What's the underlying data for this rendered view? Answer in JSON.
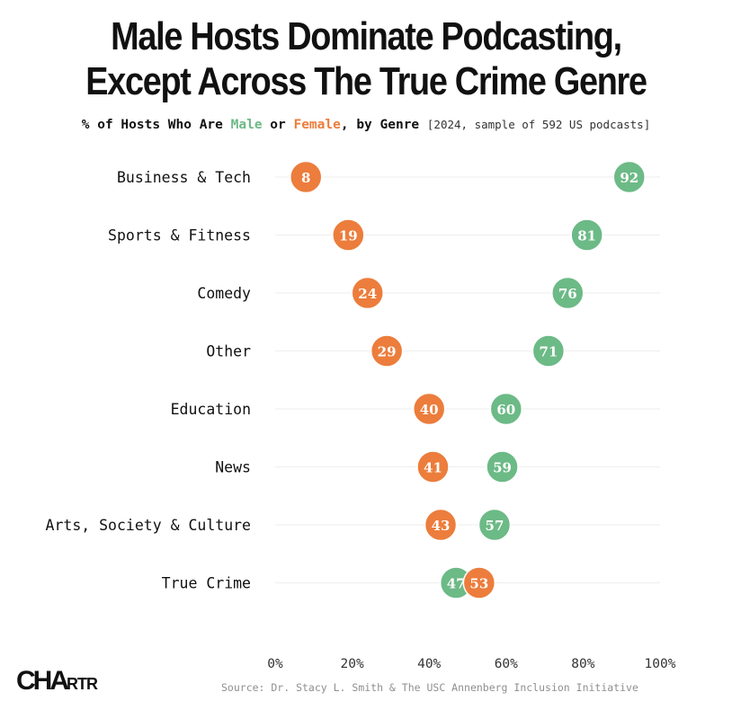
{
  "header": {
    "title_line1": "Male Hosts Dominate Podcasting,",
    "title_line2": "Except Across The True Crime Genre",
    "subtitle_prefix": "% of Hosts Who Are ",
    "subtitle_male": "Male",
    "subtitle_or": " or ",
    "subtitle_female": "Female",
    "subtitle_suffix": ", by Genre ",
    "subtitle_note": "[2024, sample of 592 US podcasts]"
  },
  "footer": {
    "source": "Source: Dr. Stacy L. Smith & The USC Annenberg Inclusion Initiative",
    "logo_main": "CHA",
    "logo_small": "RTR"
  },
  "colors": {
    "male": "#6cba86",
    "female": "#ec7d3c",
    "grid": "#eeeeee"
  },
  "chart_data": {
    "type": "scatter",
    "title": "Male Hosts Dominate Podcasting, Except Across The True Crime Genre",
    "subtitle": "% of Hosts Who Are Male or Female, by Genre [2024, sample of 592 US podcasts]",
    "categories": [
      "Business & Tech",
      "Sports & Fitness",
      "Comedy",
      "Other",
      "Education",
      "News",
      "Arts, Society & Culture",
      "True Crime"
    ],
    "series": [
      {
        "name": "Male",
        "values": [
          92,
          81,
          76,
          71,
          60,
          59,
          57,
          47
        ]
      },
      {
        "name": "Female",
        "values": [
          8,
          19,
          24,
          29,
          40,
          41,
          43,
          53
        ]
      }
    ],
    "xlim": [
      0,
      100
    ],
    "xticks": [
      "0%",
      "20%",
      "40%",
      "60%",
      "80%",
      "100%"
    ],
    "grid": true
  }
}
